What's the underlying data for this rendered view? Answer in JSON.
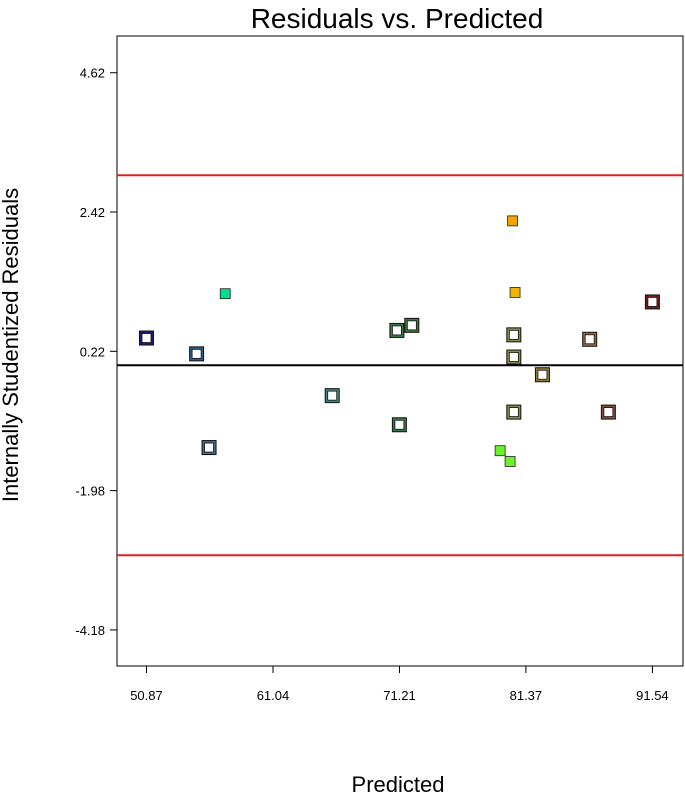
{
  "chart_data": {
    "type": "scatter",
    "title": "Residuals vs. Predicted",
    "xlabel": "Predicted",
    "ylabel": "Internally Studentized Residuals",
    "xlim": [
      48.5,
      94.0
    ],
    "ylim": [
      -4.75,
      5.2
    ],
    "x_ticks": [
      50.87,
      61.04,
      71.21,
      81.37,
      91.54
    ],
    "x_tick_labels": [
      "50.87",
      "61.04",
      "71.21",
      "81.37",
      "91.54"
    ],
    "y_ticks": [
      4.62,
      2.42,
      0.22,
      -1.98,
      -4.18
    ],
    "y_tick_labels": [
      "4.62",
      "2.42",
      "0.22",
      "-1.98",
      "-4.18"
    ],
    "reference_lines": [
      {
        "y": 0.0,
        "color": "#000000"
      },
      {
        "y": 3.0,
        "color": "#e0201b"
      },
      {
        "y": -3.0,
        "color": "#e0201b"
      }
    ],
    "grid": false,
    "points": [
      {
        "x": 50.87,
        "y": 0.43,
        "color": "#1a1a7a",
        "style": "double-square"
      },
      {
        "x": 54.9,
        "y": 0.18,
        "color": "#2b5c9a",
        "style": "double-square"
      },
      {
        "x": 55.9,
        "y": -1.3,
        "color": "#3a6f8f",
        "style": "double-square"
      },
      {
        "x": 57.2,
        "y": 1.13,
        "color": "#00e08a",
        "style": "filled-square"
      },
      {
        "x": 65.8,
        "y": -0.48,
        "color": "#3a8a8a",
        "style": "double-square"
      },
      {
        "x": 71.0,
        "y": 0.55,
        "color": "#3a7a4a",
        "style": "double-square"
      },
      {
        "x": 71.2,
        "y": -0.94,
        "color": "#3a7a4a",
        "style": "double-square"
      },
      {
        "x": 72.2,
        "y": 0.63,
        "color": "#3f7a3a",
        "style": "double-square"
      },
      {
        "x": 79.3,
        "y": -1.35,
        "color": "#6ef02a",
        "style": "filled-square"
      },
      {
        "x": 80.1,
        "y": -1.52,
        "color": "#6ef02a",
        "style": "filled-square"
      },
      {
        "x": 80.3,
        "y": 2.28,
        "color": "#f2a400",
        "style": "filled-square"
      },
      {
        "x": 80.5,
        "y": 1.15,
        "color": "#f2b400",
        "style": "filled-square"
      },
      {
        "x": 80.4,
        "y": 0.48,
        "color": "#8a8a4a",
        "style": "double-square"
      },
      {
        "x": 80.4,
        "y": 0.13,
        "color": "#8a8a4a",
        "style": "double-square"
      },
      {
        "x": 80.4,
        "y": -0.74,
        "color": "#8a8a4a",
        "style": "double-square"
      },
      {
        "x": 82.7,
        "y": -0.15,
        "color": "#9a7a3a",
        "style": "double-square"
      },
      {
        "x": 86.5,
        "y": 0.41,
        "color": "#9a6a3a",
        "style": "double-square"
      },
      {
        "x": 88.0,
        "y": -0.74,
        "color": "#8a4a3a",
        "style": "double-square"
      },
      {
        "x": 91.54,
        "y": 1.0,
        "color": "#7a1a1a",
        "style": "double-square"
      }
    ]
  }
}
